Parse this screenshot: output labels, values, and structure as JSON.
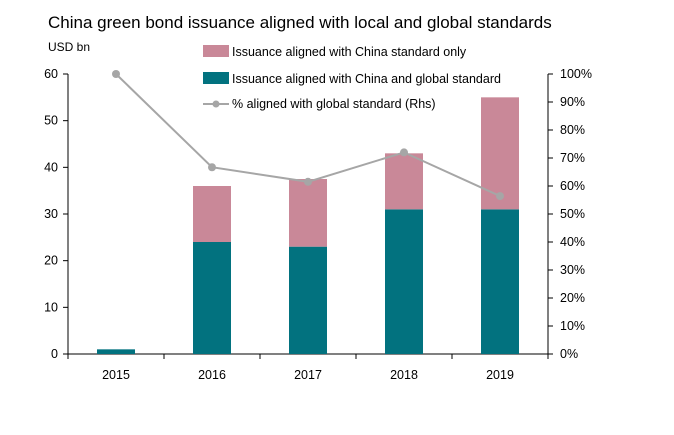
{
  "chart_data": {
    "type": "bar",
    "title": "China green bond issuance aligned with local and global standards",
    "unit_label": "USD bn",
    "categories": [
      "2015",
      "2016",
      "2017",
      "2018",
      "2019"
    ],
    "stacked": true,
    "series": [
      {
        "name": "Issuance aligned with China and global standard",
        "type": "bar",
        "axis": "left",
        "color": "#02727f",
        "values": [
          1,
          24,
          23,
          31,
          31
        ]
      },
      {
        "name": "Issuance aligned with China standard only",
        "type": "bar",
        "axis": "left",
        "color": "#c98898",
        "values": [
          0,
          12,
          14.5,
          12,
          24
        ]
      },
      {
        "name": "% aligned with global standard (Rhs)",
        "type": "line",
        "axis": "right",
        "color": "#a6a6a6",
        "values": [
          100,
          66.7,
          61.5,
          72,
          56.4
        ]
      }
    ],
    "left_axis": {
      "min": 0,
      "max": 60,
      "ticks": [
        "0",
        "10",
        "20",
        "30",
        "40",
        "50",
        "60"
      ]
    },
    "right_axis": {
      "min": 0,
      "max": 100,
      "ticks": [
        "0%",
        "10%",
        "20%",
        "30%",
        "40%",
        "50%",
        "60%",
        "70%",
        "80%",
        "90%",
        "100%"
      ]
    },
    "legend": {
      "position": "top-center",
      "entries": [
        "Issuance aligned with China standard only",
        "Issuance aligned with China and global standard",
        "% aligned with global standard (Rhs)"
      ]
    },
    "grid": false
  }
}
